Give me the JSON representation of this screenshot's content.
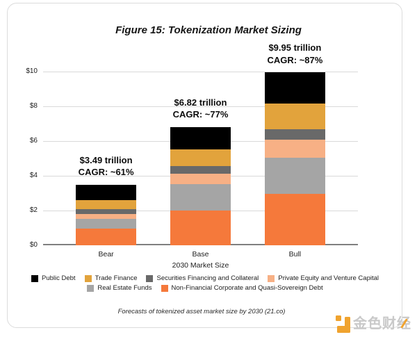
{
  "colors": {
    "public_debt": "#000000",
    "trade_finance": "#e2a33c",
    "securities": "#696969",
    "pe_vc": "#f7b085",
    "real_estate": "#a5a5a5",
    "non_financial": "#f5793b",
    "gridline": "#d9d9d9",
    "axis_line": "#7f7f7f",
    "watermark_orange": "#f0a32f",
    "watermark_gray": "#c9c9c9"
  },
  "chart_data": {
    "type": "bar",
    "stacked": true,
    "title": "Figure 15: Tokenization Market Sizing",
    "xlabel": "2030 Market Size",
    "ylabel": "",
    "ylim": [
      0,
      10
    ],
    "grid": true,
    "legend_position": "bottom",
    "yticks": [
      {
        "label": "$0",
        "value": 0
      },
      {
        "label": "$2",
        "value": 2
      },
      {
        "label": "$4",
        "value": 4
      },
      {
        "label": "$6",
        "value": 6
      },
      {
        "label": "$8",
        "value": 8
      },
      {
        "label": "$10",
        "value": 10
      }
    ],
    "categories": [
      "Bear",
      "Base",
      "Bull"
    ],
    "series": [
      {
        "name": "Non-Financial Corporate and Quasi-Sovereign Debt",
        "color": "non_financial",
        "values": [
          0.98,
          2.0,
          2.95
        ]
      },
      {
        "name": "Real Estate Funds",
        "color": "real_estate",
        "values": [
          0.56,
          1.52,
          2.1
        ]
      },
      {
        "name": "Private Equity and Venture Capital",
        "color": "pe_vc",
        "values": [
          0.28,
          0.62,
          1.05
        ]
      },
      {
        "name": "Securities Financing and Collateral",
        "color": "securities",
        "values": [
          0.27,
          0.41,
          0.6
        ]
      },
      {
        "name": "Trade Finance",
        "color": "trade_finance",
        "values": [
          0.5,
          0.97,
          1.45
        ]
      },
      {
        "name": "Public Debt",
        "color": "public_debt",
        "values": [
          0.9,
          1.3,
          1.8
        ]
      }
    ],
    "totals_trillions": [
      3.49,
      6.82,
      9.95
    ],
    "annotations": [
      {
        "line1": "$3.49 trillion",
        "line2": "CAGR: ~61%"
      },
      {
        "line1": "$6.82 trillion",
        "line2": "CAGR: ~77%"
      },
      {
        "line1": "$9.95 trillion",
        "line2": "CAGR: ~87%"
      }
    ]
  },
  "legend": {
    "rows": [
      [
        {
          "key": "public_debt",
          "label": "Public Debt"
        },
        {
          "key": "trade_finance",
          "label": "Trade Finance"
        },
        {
          "key": "securities",
          "label": "Securities Financing and Collateral"
        },
        {
          "key": "pe_vc",
          "label": "Private Equity and Venture Capital"
        }
      ],
      [
        {
          "key": "real_estate",
          "label": "Real Estate Funds"
        },
        {
          "key": "non_financial",
          "label": "Non-Financial Corporate and Quasi-Sovereign Debt"
        }
      ]
    ]
  },
  "footer": {
    "caption": "Forecasts of tokenized asset market size by 2030 (21.co)"
  },
  "watermark": {
    "text": "金色财经"
  }
}
